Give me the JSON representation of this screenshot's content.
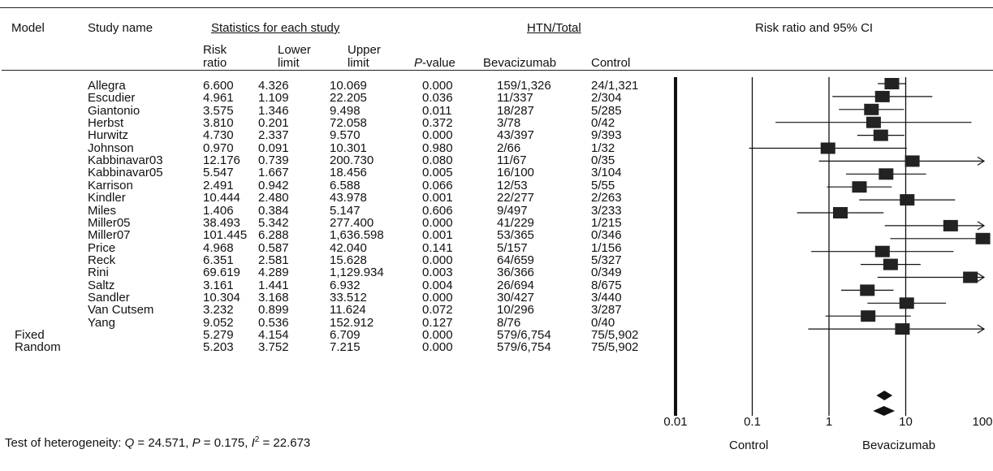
{
  "headers": {
    "model": "Model",
    "study_name": "Study name",
    "stats_group": "Statistics for each study",
    "htn_group": "HTN/Total",
    "risk_ratio_line1": "Risk",
    "risk_ratio_line2": "ratio",
    "lower_line1": "Lower",
    "lower_line2": "limit",
    "upper_line1": "Upper",
    "upper_line2": "limit",
    "p_value_prefix": "P",
    "p_value_suffix": "-value",
    "bevacizumab": "Bevacizumab",
    "control": "Control",
    "plot_title": "Risk ratio and 95% CI"
  },
  "footer": {
    "heterogeneity_prefix": "Test of heterogeneity: ",
    "q_label": "Q",
    "q_value": " = 24.571, ",
    "p_label": "P",
    "p_value": " = 0.175, ",
    "i_label": "I",
    "i_sup": "2",
    "i_value": " = 22.673",
    "favours_left": "Control",
    "favours_right": "Bevacizumab"
  },
  "chart_data": {
    "type": "forest",
    "x_scale": "log",
    "xlim": [
      0.01,
      100
    ],
    "x_ticks": [
      0.01,
      0.1,
      1,
      10,
      100
    ],
    "x_tick_labels": [
      "0.01",
      "0.1",
      "1",
      "10",
      "100"
    ],
    "studies": [
      {
        "name": "Allegra",
        "rr": "6.600",
        "lower": "4.326",
        "upper": "10.069",
        "p": "0.000",
        "bev": "159/1,326",
        "ctrl": "24/1,321",
        "plot_rr": 6.6,
        "plot_lower": 4.326,
        "plot_upper": 10.069
      },
      {
        "name": "Escudier",
        "rr": "4.961",
        "lower": "1.109",
        "upper": "22.205",
        "p": "0.036",
        "bev": "11/337",
        "ctrl": "2/304",
        "plot_rr": 4.961,
        "plot_lower": 1.109,
        "plot_upper": 22.205
      },
      {
        "name": "Giantonio",
        "rr": "3.575",
        "lower": "1.346",
        "upper": "9.498",
        "p": "0.011",
        "bev": "18/287",
        "ctrl": "5/285",
        "plot_rr": 3.575,
        "plot_lower": 1.346,
        "plot_upper": 9.498
      },
      {
        "name": "Herbst",
        "rr": "3.810",
        "lower": "0.201",
        "upper": "72.058",
        "p": "0.372",
        "bev": "3/78",
        "ctrl": "0/42",
        "plot_rr": 3.81,
        "plot_lower": 0.201,
        "plot_upper": 72.058
      },
      {
        "name": "Hurwitz",
        "rr": "4.730",
        "lower": "2.337",
        "upper": "9.570",
        "p": "0.000",
        "bev": "43/397",
        "ctrl": "9/393",
        "plot_rr": 4.73,
        "plot_lower": 2.337,
        "plot_upper": 9.57
      },
      {
        "name": "Johnson",
        "rr": "0.970",
        "lower": "0.091",
        "upper": "10.301",
        "p": "0.980",
        "bev": "2/66",
        "ctrl": "1/32",
        "plot_rr": 0.97,
        "plot_lower": 0.091,
        "plot_upper": 10.301
      },
      {
        "name": "Kabbinavar03",
        "rr": "12.176",
        "lower": "0.739",
        "upper": "200.730",
        "p": "0.080",
        "bev": "11/67",
        "ctrl": "0/35",
        "plot_rr": 12.176,
        "plot_lower": 0.739,
        "plot_upper": 200.73
      },
      {
        "name": "Kabbinavar05",
        "rr": "5.547",
        "lower": "1.667",
        "upper": "18.456",
        "p": "0.005",
        "bev": "16/100",
        "ctrl": "3/104",
        "plot_rr": 5.547,
        "plot_lower": 1.667,
        "plot_upper": 18.456
      },
      {
        "name": "Karrison",
        "rr": "2.491",
        "lower": "0.942",
        "upper": "6.588",
        "p": "0.066",
        "bev": "12/53",
        "ctrl": "5/55",
        "plot_rr": 2.491,
        "plot_lower": 0.942,
        "plot_upper": 6.588
      },
      {
        "name": "Kindler",
        "rr": "10.444",
        "lower": "2.480",
        "upper": "43.978",
        "p": "0.001",
        "bev": "22/277",
        "ctrl": "2/263",
        "plot_rr": 10.444,
        "plot_lower": 2.48,
        "plot_upper": 43.978
      },
      {
        "name": "Miles",
        "rr": "1.406",
        "lower": "0.384",
        "upper": "5.147",
        "p": "0.606",
        "bev": "9/497",
        "ctrl": "3/233",
        "plot_rr": 1.406,
        "plot_lower": 0.384,
        "plot_upper": 5.147
      },
      {
        "name": "Miller05",
        "rr": "38.493",
        "lower": "5.342",
        "upper": "277.400",
        "p": "0.000",
        "bev": "41/229",
        "ctrl": "1/215",
        "plot_rr": 38.493,
        "plot_lower": 5.342,
        "plot_upper": 277.4
      },
      {
        "name": "Miller07",
        "rr": "101.445",
        "lower": "6.288",
        "upper": "1,636.598",
        "p": "0.001",
        "bev": "53/365",
        "ctrl": "0/346",
        "plot_rr": 101.445,
        "plot_lower": 6.288,
        "plot_upper": 1636.598
      },
      {
        "name": "Price",
        "rr": "4.968",
        "lower": "0.587",
        "upper": "42.040",
        "p": "0.141",
        "bev": "5/157",
        "ctrl": "1/156",
        "plot_rr": 4.968,
        "plot_lower": 0.587,
        "plot_upper": 42.04
      },
      {
        "name": "Reck",
        "rr": "6.351",
        "lower": "2.581",
        "upper": "15.628",
        "p": "0.000",
        "bev": "64/659",
        "ctrl": "5/327",
        "plot_rr": 6.351,
        "plot_lower": 2.581,
        "plot_upper": 15.628
      },
      {
        "name": "Rini",
        "rr": "69.619",
        "lower": "4.289",
        "upper": "1,129.934",
        "p": "0.003",
        "bev": "36/366",
        "ctrl": "0/349",
        "plot_rr": 69.619,
        "plot_lower": 4.289,
        "plot_upper": 1129.934
      },
      {
        "name": "Saltz",
        "rr": "3.161",
        "lower": "1.441",
        "upper": "6.932",
        "p": "0.004",
        "bev": "26/694",
        "ctrl": "8/675",
        "plot_rr": 3.161,
        "plot_lower": 1.441,
        "plot_upper": 6.932
      },
      {
        "name": "Sandler",
        "rr": "10.304",
        "lower": "3.168",
        "upper": "33.512",
        "p": "0.000",
        "bev": "30/427",
        "ctrl": "3/440",
        "plot_rr": 10.304,
        "plot_lower": 3.168,
        "plot_upper": 33.512
      },
      {
        "name": "Van Cutsem",
        "rr": "3.232",
        "lower": "0.899",
        "upper": "11.624",
        "p": "0.072",
        "bev": "10/296",
        "ctrl": "3/287",
        "plot_rr": 3.232,
        "plot_lower": 0.899,
        "plot_upper": 11.624
      },
      {
        "name": "Yang",
        "rr": "9.052",
        "lower": "0.536",
        "upper": "152.912",
        "p": "0.127",
        "bev": "8/76",
        "ctrl": "0/40",
        "plot_rr": 9.052,
        "plot_lower": 0.536,
        "plot_upper": 152.912
      }
    ],
    "pooled": [
      {
        "model": "Fixed",
        "rr": "5.279",
        "lower": "4.154",
        "upper": "6.709",
        "p": "0.000",
        "bev": "579/6,754",
        "ctrl": "75/5,902",
        "plot_rr": 5.279,
        "plot_lower": 4.154,
        "plot_upper": 6.709
      },
      {
        "model": "Random",
        "rr": "5.203",
        "lower": "3.752",
        "upper": "7.215",
        "p": "0.000",
        "bev": "579/6,754",
        "ctrl": "75/5,902",
        "plot_rr": 5.203,
        "plot_lower": 3.752,
        "plot_upper": 7.215
      }
    ]
  }
}
